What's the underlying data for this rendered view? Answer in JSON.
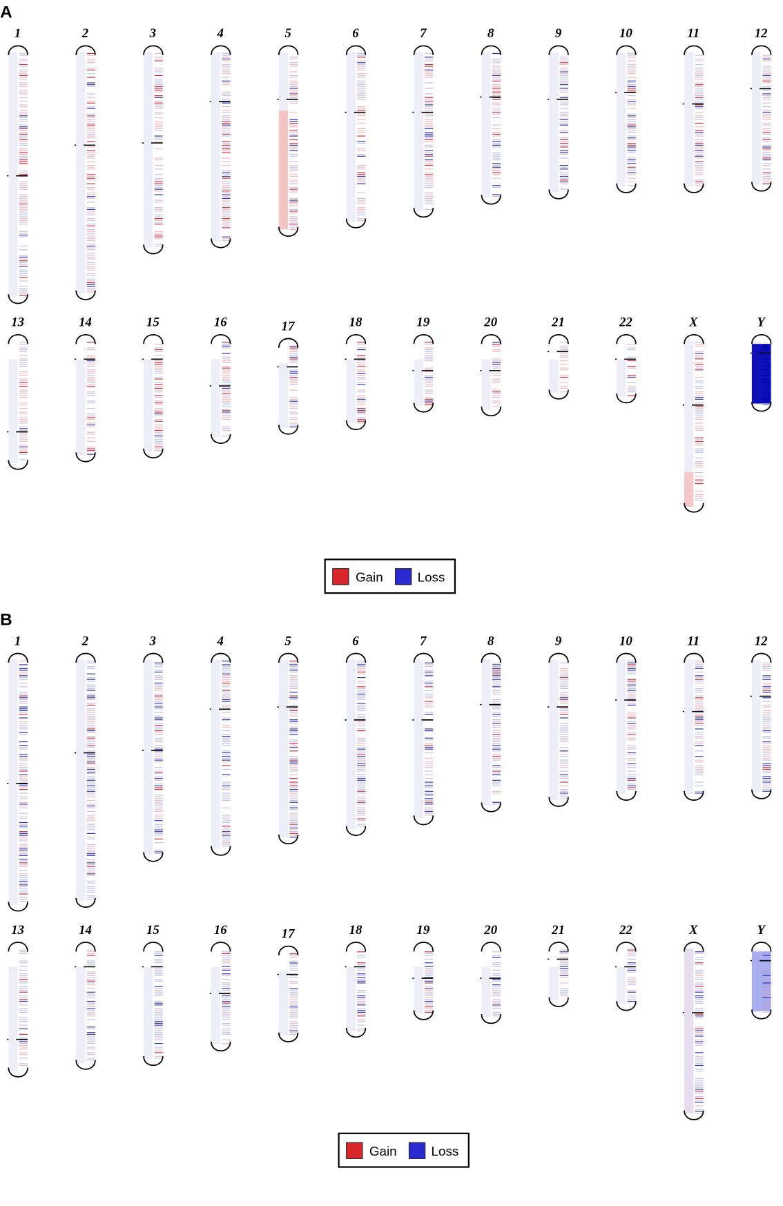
{
  "panels": [
    {
      "label": "A",
      "chromosomes": [
        "1",
        "2",
        "3",
        "4",
        "5",
        "6",
        "7",
        "8",
        "9",
        "10",
        "11",
        "12",
        "13",
        "14",
        "15",
        "16",
        "17",
        "18",
        "19",
        "20",
        "21",
        "22",
        "X",
        "Y"
      ],
      "legend": [
        "Gain",
        "Loss"
      ]
    },
    {
      "label": "B",
      "chromosomes": [
        "1",
        "2",
        "3",
        "4",
        "5",
        "6",
        "7",
        "8",
        "9",
        "10",
        "11",
        "12",
        "13",
        "14",
        "15",
        "16",
        "17",
        "18",
        "19",
        "20",
        "21",
        "22",
        "X",
        "Y"
      ],
      "legend": [
        "Gain",
        "Loss"
      ]
    }
  ]
}
